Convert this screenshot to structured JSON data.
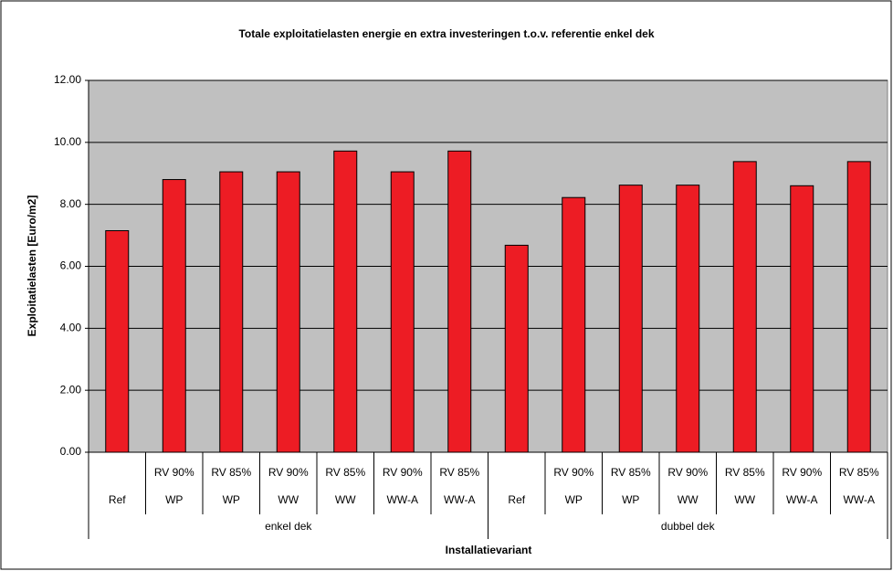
{
  "chart_data": {
    "type": "bar",
    "title": "Totale exploitatielasten energie en extra investeringen t.o.v. referentie enkel dek",
    "y_label": "Exploitatielasten [Euro/m2]",
    "x_label": "Installatievariant",
    "categories": [
      "Ref",
      "WP",
      "WP",
      "WW",
      "WW",
      "WW-A",
      "WW-A",
      "Ref",
      "WP",
      "WP",
      "WW",
      "WW",
      "WW-A",
      "WW-A"
    ],
    "subcategories": [
      null,
      "RV 90%",
      "RV 85%",
      "RV 90%",
      "RV 85%",
      "RV 90%",
      "RV 85%",
      null,
      "RV 90%",
      "RV 85%",
      "RV 90%",
      "RV 85%",
      "RV 90%",
      "RV 85%"
    ],
    "groups": [
      "enkel dek",
      "dubbel dek"
    ],
    "values": [
      7.15,
      8.8,
      9.05,
      9.05,
      9.72,
      9.05,
      9.72,
      6.68,
      8.22,
      8.62,
      8.62,
      9.38,
      8.6,
      9.38
    ],
    "color": "#ed1c24",
    "ylim": [
      0,
      12
    ],
    "yticks": [
      {
        "value": 0,
        "label": "0.00"
      },
      {
        "value": 2,
        "label": "2.00"
      },
      {
        "value": 4,
        "label": "4.00"
      },
      {
        "value": 6,
        "label": "6.00"
      },
      {
        "value": 8,
        "label": "8.00"
      },
      {
        "value": 10,
        "label": "10.00"
      },
      {
        "value": 12,
        "label": "12.00"
      }
    ],
    "grid": true,
    "plot_background": "#c0c0c0"
  }
}
